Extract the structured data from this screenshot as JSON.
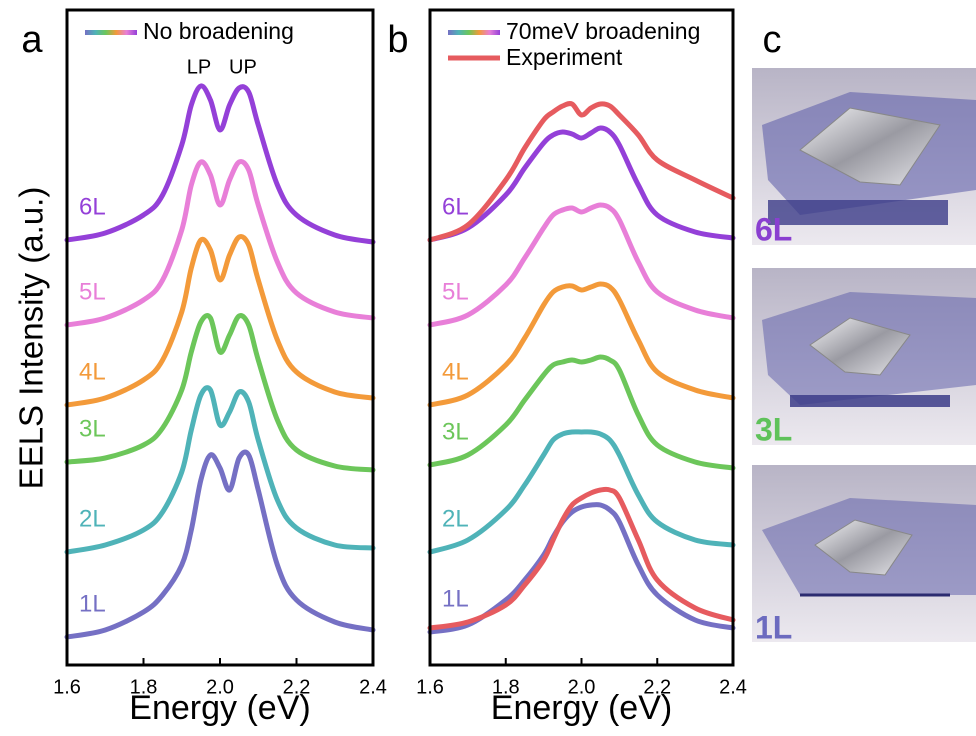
{
  "chart_data": [
    {
      "type": "line",
      "panel": "a",
      "ylabel": "EELS Intensity (a.u.)",
      "xlabel": "Energy (eV)",
      "legend": {
        "label": "No broadening"
      },
      "annotations": [
        {
          "text": "LP",
          "x": 1.945
        },
        {
          "text": "UP",
          "x": 2.06
        }
      ],
      "x": [
        1.6,
        1.7,
        1.8,
        1.85,
        1.9,
        1.925,
        1.95,
        1.975,
        2.0,
        2.025,
        2.05,
        2.075,
        2.1,
        2.15,
        2.2,
        2.3,
        2.4
      ],
      "xlim": [
        1.6,
        2.4
      ],
      "xticks": [
        1.6,
        1.8,
        {
          "value": 2.0,
          "label": "2.0"
        },
        2.2,
        2.4
      ],
      "ylim": [
        0,
        655
      ],
      "series": [
        {
          "name": "1L",
          "color": "#7570c4",
          "values": [
            28,
            35,
            53,
            70,
            100,
            135,
            185,
            210,
            197,
            175,
            207,
            210,
            175,
            100,
            65,
            43,
            35
          ]
        },
        {
          "name": "2L",
          "color": "#4fb3b8",
          "values": [
            113,
            120,
            135,
            153,
            193,
            235,
            270,
            275,
            240,
            253,
            273,
            263,
            225,
            165,
            137,
            120,
            117
          ]
        },
        {
          "name": "3L",
          "color": "#6cc65a",
          "values": [
            203,
            207,
            220,
            237,
            275,
            313,
            343,
            347,
            313,
            330,
            349,
            340,
            305,
            245,
            215,
            199,
            195
          ]
        },
        {
          "name": "4L",
          "color": "#f39a3a",
          "values": [
            260,
            267,
            285,
            305,
            353,
            397,
            425,
            415,
            385,
            410,
            428,
            420,
            385,
            325,
            293,
            273,
            267
          ]
        },
        {
          "name": "5L",
          "color": "#e87fd8",
          "values": [
            340,
            347,
            365,
            385,
            435,
            480,
            503,
            490,
            460,
            485,
            503,
            495,
            460,
            403,
            372,
            353,
            347
          ]
        },
        {
          "name": "6L",
          "color": "#9440d8",
          "values": [
            425,
            432,
            450,
            470,
            520,
            560,
            579,
            565,
            535,
            560,
            577,
            573,
            540,
            480,
            450,
            430,
            423
          ]
        }
      ]
    },
    {
      "type": "line",
      "panel": "b",
      "xlabel": "Energy (eV)",
      "legend": {
        "label": "70meV broadening"
      },
      "x": [
        1.6,
        1.7,
        1.8,
        1.85,
        1.9,
        1.925,
        1.95,
        1.975,
        2.0,
        2.025,
        2.05,
        2.075,
        2.1,
        2.15,
        2.2,
        2.3,
        2.4
      ],
      "xlim": [
        1.6,
        2.4
      ],
      "xticks": [
        1.6,
        1.8,
        {
          "value": 2.0,
          "label": "2.0"
        },
        2.2,
        2.4
      ],
      "ylim": [
        0,
        655
      ],
      "series": [
        {
          "name": "1L",
          "color": "#7570c4",
          "values": [
            33,
            40,
            65,
            85,
            110,
            128,
            143,
            153,
            158,
            160,
            160,
            155,
            143,
            100,
            70,
            45,
            37
          ]
        },
        {
          "name": "2L",
          "color": "#4fb3b8",
          "values": [
            113,
            125,
            155,
            180,
            210,
            225,
            231,
            233,
            233,
            233,
            231,
            225,
            210,
            170,
            143,
            125,
            120
          ]
        },
        {
          "name": "3L",
          "color": "#6cc65a",
          "values": [
            200,
            210,
            240,
            265,
            290,
            300,
            303,
            305,
            303,
            305,
            308,
            305,
            295,
            250,
            220,
            203,
            197
          ]
        },
        {
          "name": "4L",
          "color": "#f39a3a",
          "values": [
            260,
            270,
            300,
            327,
            360,
            373,
            378,
            379,
            375,
            378,
            381,
            378,
            365,
            325,
            293,
            275,
            267
          ]
        },
        {
          "name": "5L",
          "color": "#e87fd8",
          "values": [
            340,
            350,
            380,
            407,
            437,
            450,
            455,
            457,
            453,
            457,
            460,
            457,
            445,
            403,
            373,
            355,
            347
          ]
        },
        {
          "name": "6L",
          "color": "#9440d8",
          "values": [
            425,
            437,
            470,
            497,
            522,
            530,
            533,
            531,
            527,
            532,
            537,
            533,
            520,
            480,
            450,
            433,
            427
          ]
        }
      ],
      "experiment": {
        "name": "Experiment",
        "color": "#e65b5f",
        "series": [
          {
            "values": [
              37,
              43,
              60,
              80,
              105,
              125,
              145,
              160,
              167,
              172,
              175,
              175,
              167,
              125,
              85,
              57,
              45
            ]
          },
          {
            "values": [
              425,
              440,
              485,
              517,
              545,
              553,
              559,
              561,
              550,
              557,
              561,
              559,
              550,
              530,
              505,
              485,
              467
            ]
          }
        ]
      }
    }
  ],
  "panel_c": {
    "letter": "c",
    "labels": [
      {
        "text": "6L",
        "color": "#8a3fd0"
      },
      {
        "text": "3L",
        "color": "#5fc25a"
      },
      {
        "text": "1L",
        "color": "#6c6bbf"
      }
    ]
  }
}
